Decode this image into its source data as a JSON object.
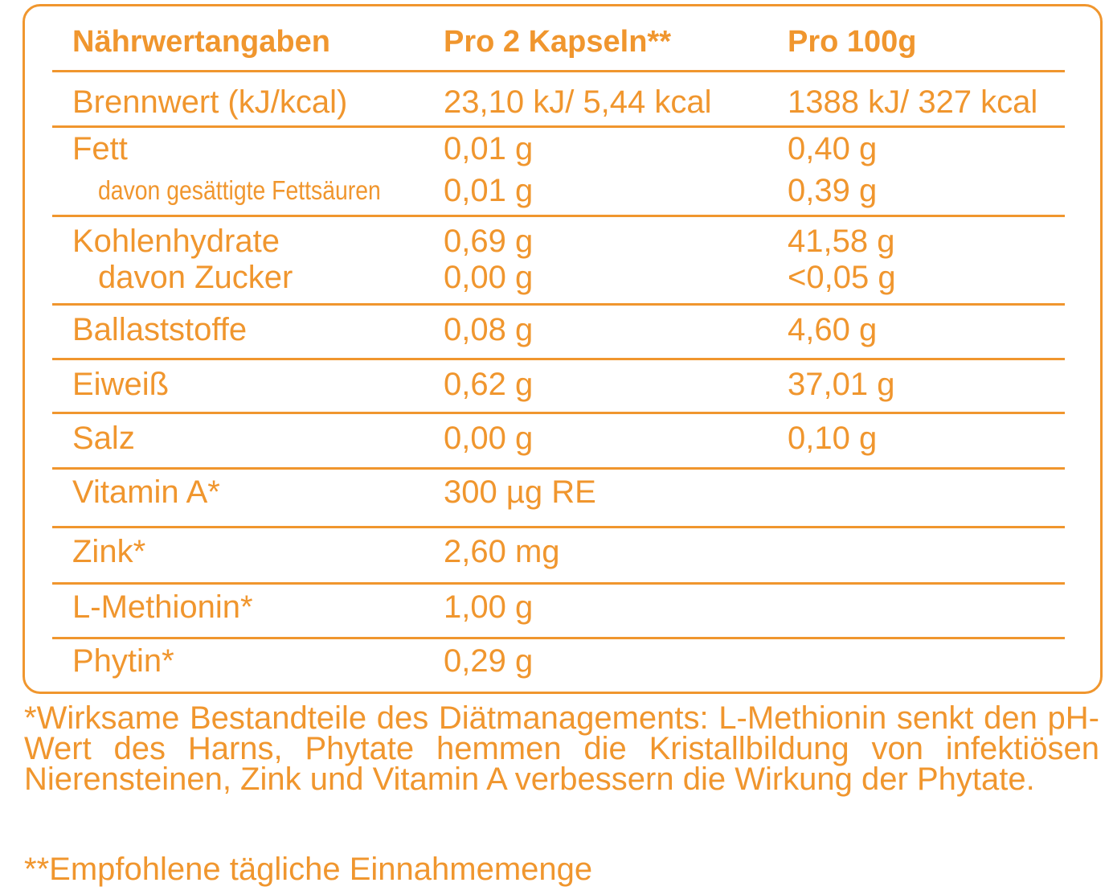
{
  "table": {
    "header": [
      "Nährwertangaben",
      "Pro 2 Kapseln**",
      "Pro 100g"
    ],
    "rows": [
      [
        [
          "Brennwert (kJ/kcal)",
          "23,10 kJ/ 5,44 kcal",
          "1388 kJ/ 327 kcal"
        ]
      ],
      [
        [
          "Fett",
          "0,01 g",
          "0,40 g"
        ],
        [
          "davon gesättigte Fettsäuren",
          "0,01 g",
          "0,39 g"
        ]
      ],
      [
        [
          "Kohlenhydrate",
          "0,69 g",
          "41,58 g"
        ],
        [
          "davon Zucker",
          "0,00 g",
          "<0,05 g"
        ]
      ],
      [
        [
          "Ballaststoffe",
          "0,08 g",
          "4,60 g"
        ]
      ],
      [
        [
          "Eiweiß",
          "0,62 g",
          "37,01 g"
        ]
      ],
      [
        [
          "Salz",
          "0,00 g",
          "0,10 g"
        ]
      ],
      [
        [
          "Vitamin A*",
          "300 µg RE"
        ]
      ],
      [
        [
          "Zink*",
          "2,60 mg"
        ]
      ],
      [
        [
          "L-Methionin*",
          "1,00 g"
        ]
      ],
      [
        [
          "Phytin*",
          "0,29 g"
        ]
      ]
    ]
  },
  "footnotes": [
    "*Wirksame Bestandteile des Diätmanagements: L-Methionin senkt den pH-Wert des Harns, Phytate hemmen die Kristallbildung von infektiösen Nierensteinen, Zink und Vitamin A verbessern die Wirkung der Phytate.",
    "**Empfohlene tägliche Einnahmemenge"
  ]
}
